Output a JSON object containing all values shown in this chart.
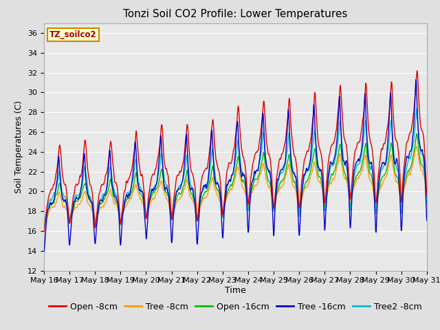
{
  "title": "Tonzi Soil CO2 Profile: Lower Temperatures",
  "xlabel": "Time",
  "ylabel": "Soil Temperatures (C)",
  "ylim": [
    12,
    37
  ],
  "yticks": [
    12,
    14,
    16,
    18,
    20,
    22,
    24,
    26,
    28,
    30,
    32,
    34,
    36
  ],
  "background_color": "#e0e0e0",
  "plot_bg_color": "#e8e8e8",
  "legend_label": "TZ_soilco2",
  "series": {
    "Open -8cm": {
      "color": "#dd0000"
    },
    "Tree -8cm": {
      "color": "#ff9900"
    },
    "Open -16cm": {
      "color": "#00bb00"
    },
    "Tree -16cm": {
      "color": "#0000cc"
    },
    "Tree2 -8cm": {
      "color": "#00bbcc"
    }
  },
  "xtick_labels": [
    "May 16",
    "May 17",
    "May 18",
    "May 19",
    "May 20",
    "May 21",
    "May 22",
    "May 23",
    "May 24",
    "May 25",
    "May 26",
    "May 27",
    "May 28",
    "May 29",
    "May 30",
    "May 31"
  ],
  "title_fontsize": 11,
  "axis_label_fontsize": 9,
  "tick_fontsize": 8,
  "legend_fontsize": 9
}
